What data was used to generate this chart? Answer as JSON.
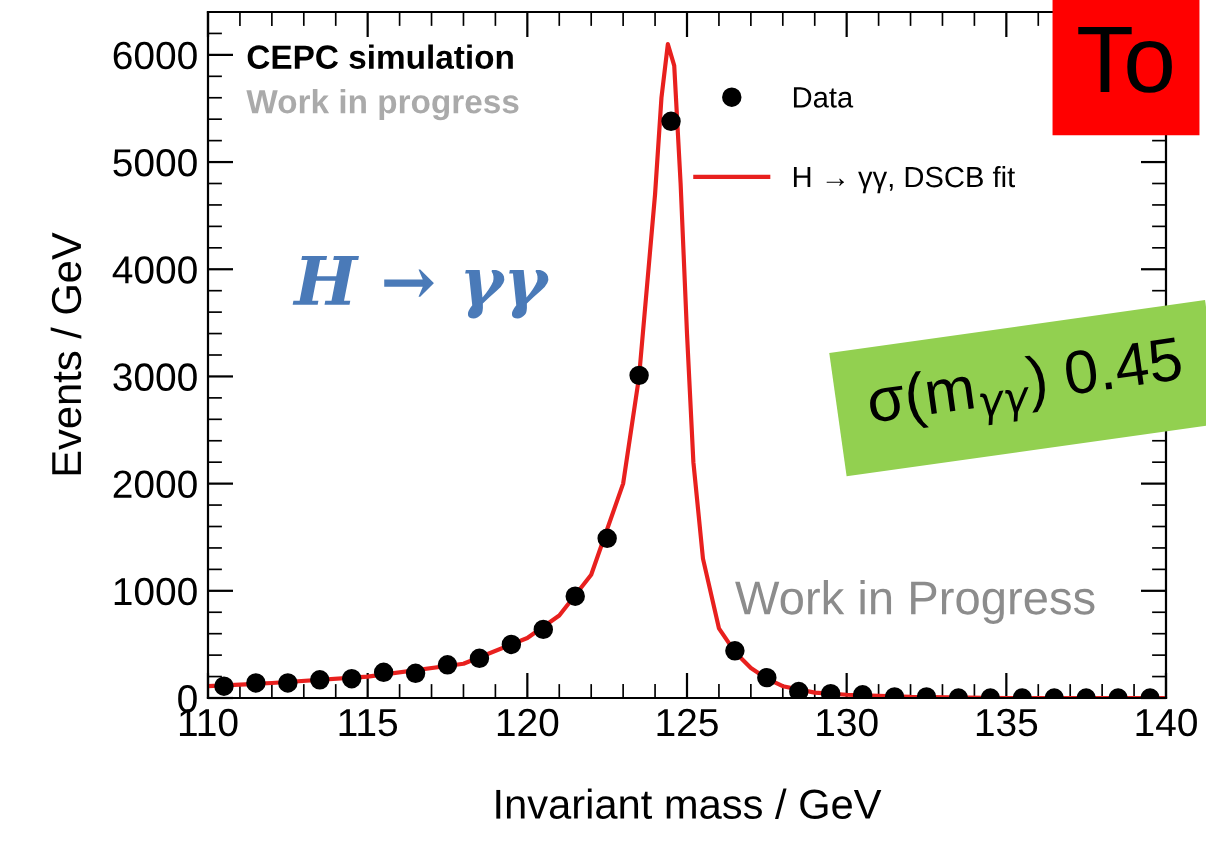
{
  "chart_data": {
    "type": "scatter",
    "xlabel": "Invariant mass / GeV",
    "ylabel": "Events / GeV",
    "xlim": [
      110,
      140
    ],
    "xticks": [
      110,
      115,
      120,
      125,
      130,
      135,
      140
    ],
    "ylim": [
      0,
      6400
    ],
    "yticks": [
      0,
      1000,
      2000,
      3000,
      4000,
      5000,
      6000
    ],
    "grid": false,
    "legend": "top right",
    "series": [
      {
        "name": "Data",
        "marker": "circle",
        "color": "#000000",
        "x": [
          110.5,
          111.5,
          112.5,
          113.5,
          114.5,
          115.5,
          116.5,
          117.5,
          118.5,
          119.5,
          120.5,
          121.5,
          122.5,
          123.5,
          124.5,
          125.5,
          126.5,
          127.5,
          128.5,
          129.5,
          130.5,
          131.5,
          132.5,
          133.5,
          134.5,
          135.5,
          136.5,
          137.5,
          138.5,
          139.5
        ],
        "values": [
          110,
          140,
          140,
          170,
          180,
          240,
          230,
          310,
          370,
          500,
          640,
          950,
          1490,
          3010,
          5380,
          null,
          440,
          190,
          60,
          40,
          30,
          10,
          10,
          0,
          0,
          0,
          0,
          0,
          0,
          0
        ]
      },
      {
        "name": "H → γγ, DSCB fit",
        "type": "line",
        "marker": "none",
        "color": "#e8201e",
        "x": [
          110,
          112,
          115,
          118,
          120,
          121,
          122,
          123,
          123.5,
          124,
          124.2,
          124.4,
          124.6,
          124.8,
          125,
          125.2,
          125.5,
          126,
          126.5,
          127,
          127.5,
          128,
          129,
          130,
          132,
          135,
          140
        ],
        "values": [
          110,
          140,
          200,
          320,
          560,
          770,
          1150,
          2000,
          3000,
          4700,
          5600,
          6100,
          5900,
          4800,
          3400,
          2200,
          1300,
          650,
          430,
          280,
          180,
          110,
          50,
          30,
          10,
          0,
          0
        ]
      }
    ],
    "annotations": [
      "CEPC simulation",
      "Work in progress",
      "H → γγ",
      "σ(m$_{γγ}$) 0.45",
      "To",
      "Work in Progress"
    ]
  }
}
